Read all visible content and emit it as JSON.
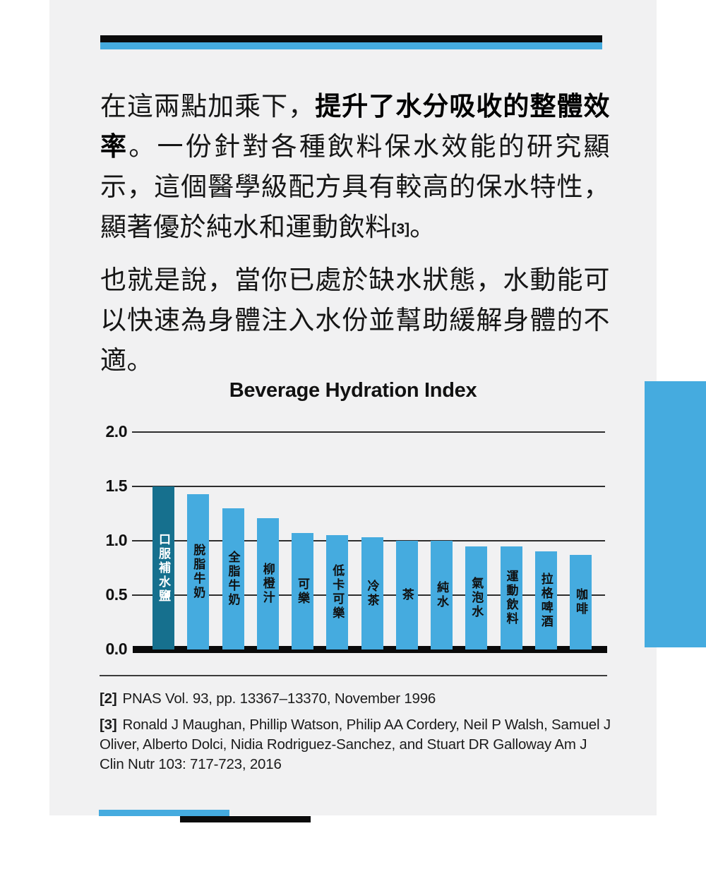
{
  "page": {
    "background": "#ffffff",
    "card_background": "#f1f1f2",
    "accent_blue": "#45abdf",
    "accent_black": "#0b0b0b"
  },
  "paragraphs": [
    {
      "segments": [
        {
          "t": "在這兩點加乘下，"
        },
        {
          "t": "提升了水分吸收的整體效率",
          "b": true
        },
        {
          "t": "。一份針對各種飲料保水效能的研究顯示，這個醫學級配方具有較高的保水特性，顯著優於純水和運動飲料"
        },
        {
          "t": "[3]",
          "ref": true
        },
        {
          "t": "。"
        }
      ]
    },
    {
      "segments": [
        {
          "t": "也就是說，當你已處於缺水狀態，水動能可以快速為身體注入水份並幫助緩解身體的不適。"
        }
      ]
    }
  ],
  "chart_data": {
    "type": "bar",
    "title": "Beverage Hydration Index",
    "categories": [
      "口服補水鹽",
      "脫脂牛奶",
      "全脂牛奶",
      "柳橙汁",
      "可樂",
      "低卡可樂",
      "冷茶",
      "茶",
      "純水",
      "氣泡水",
      "運動飲料",
      "拉格啤酒",
      "咖啡"
    ],
    "values": [
      1.5,
      1.43,
      1.3,
      1.21,
      1.07,
      1.05,
      1.03,
      1.0,
      1.0,
      0.95,
      0.95,
      0.9,
      0.87
    ],
    "xlabel": "",
    "ylabel": "",
    "ylim": [
      0,
      2
    ],
    "yticks": [
      "2.0",
      "1.5",
      "1.0",
      "0.5",
      "0.0"
    ],
    "grid": true,
    "legend": "none",
    "bar_color": "#45abdf",
    "highlight_index": 0,
    "highlight_color": "#16708e",
    "label_color": "#101010",
    "highlight_label_color": "#ffffff"
  },
  "footnotes": [
    {
      "ref": "[2]",
      "text": "PNAS Vol. 93, pp. 13367–13370, November 1996"
    },
    {
      "ref": "[3]",
      "text": "Ronald J Maughan, Phillip Watson, Philip AA Cordery, Neil P Walsh, Samuel J Oliver, Alberto Dolci, Nidia Rodriguez-Sanchez, and Stuart DR Galloway Am J Clin Nutr 103: 717-723, 2016"
    }
  ]
}
